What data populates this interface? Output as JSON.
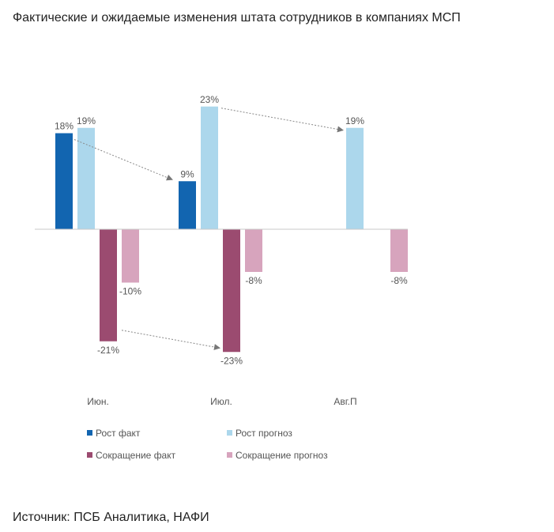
{
  "title": "Фактические и ожидаемые изменения штата сотрудников в компаниях МСП",
  "source": "Источник: ПСБ Аналитика, НАФИ",
  "chart_data": {
    "type": "bar",
    "categories": [
      "Июн.",
      "Июл.",
      "Авг.П"
    ],
    "series": [
      {
        "name": "Рост факт",
        "color": "#1265b0",
        "values": [
          18,
          9,
          null
        ],
        "labels": [
          "18%",
          "9%",
          ""
        ]
      },
      {
        "name": "Рост прогноз",
        "color": "#acd7ec",
        "values": [
          19,
          23,
          19
        ],
        "labels": [
          "19%",
          "23%",
          "19%"
        ]
      },
      {
        "name": "Сокращение факт",
        "color": "#9b4b70",
        "values": [
          -21,
          -23,
          null
        ],
        "labels": [
          "-21%",
          "-23%",
          ""
        ]
      },
      {
        "name": "Сокращение прогноз",
        "color": "#d7a4bd",
        "values": [
          -10,
          -8,
          -8
        ],
        "labels": [
          "-10%",
          "-8%",
          "-8%"
        ]
      }
    ],
    "ylim": [
      -25,
      25
    ],
    "grid": false,
    "legend": "bottom",
    "annotations": [
      "arrow from Рост факт Июн. to Рост факт Июл.",
      "arrow from Рост прогноз Июл. to Рост прогноз Авг.П",
      "arrow from Сокращение факт Июн. to Сокращение факт Июл."
    ]
  }
}
